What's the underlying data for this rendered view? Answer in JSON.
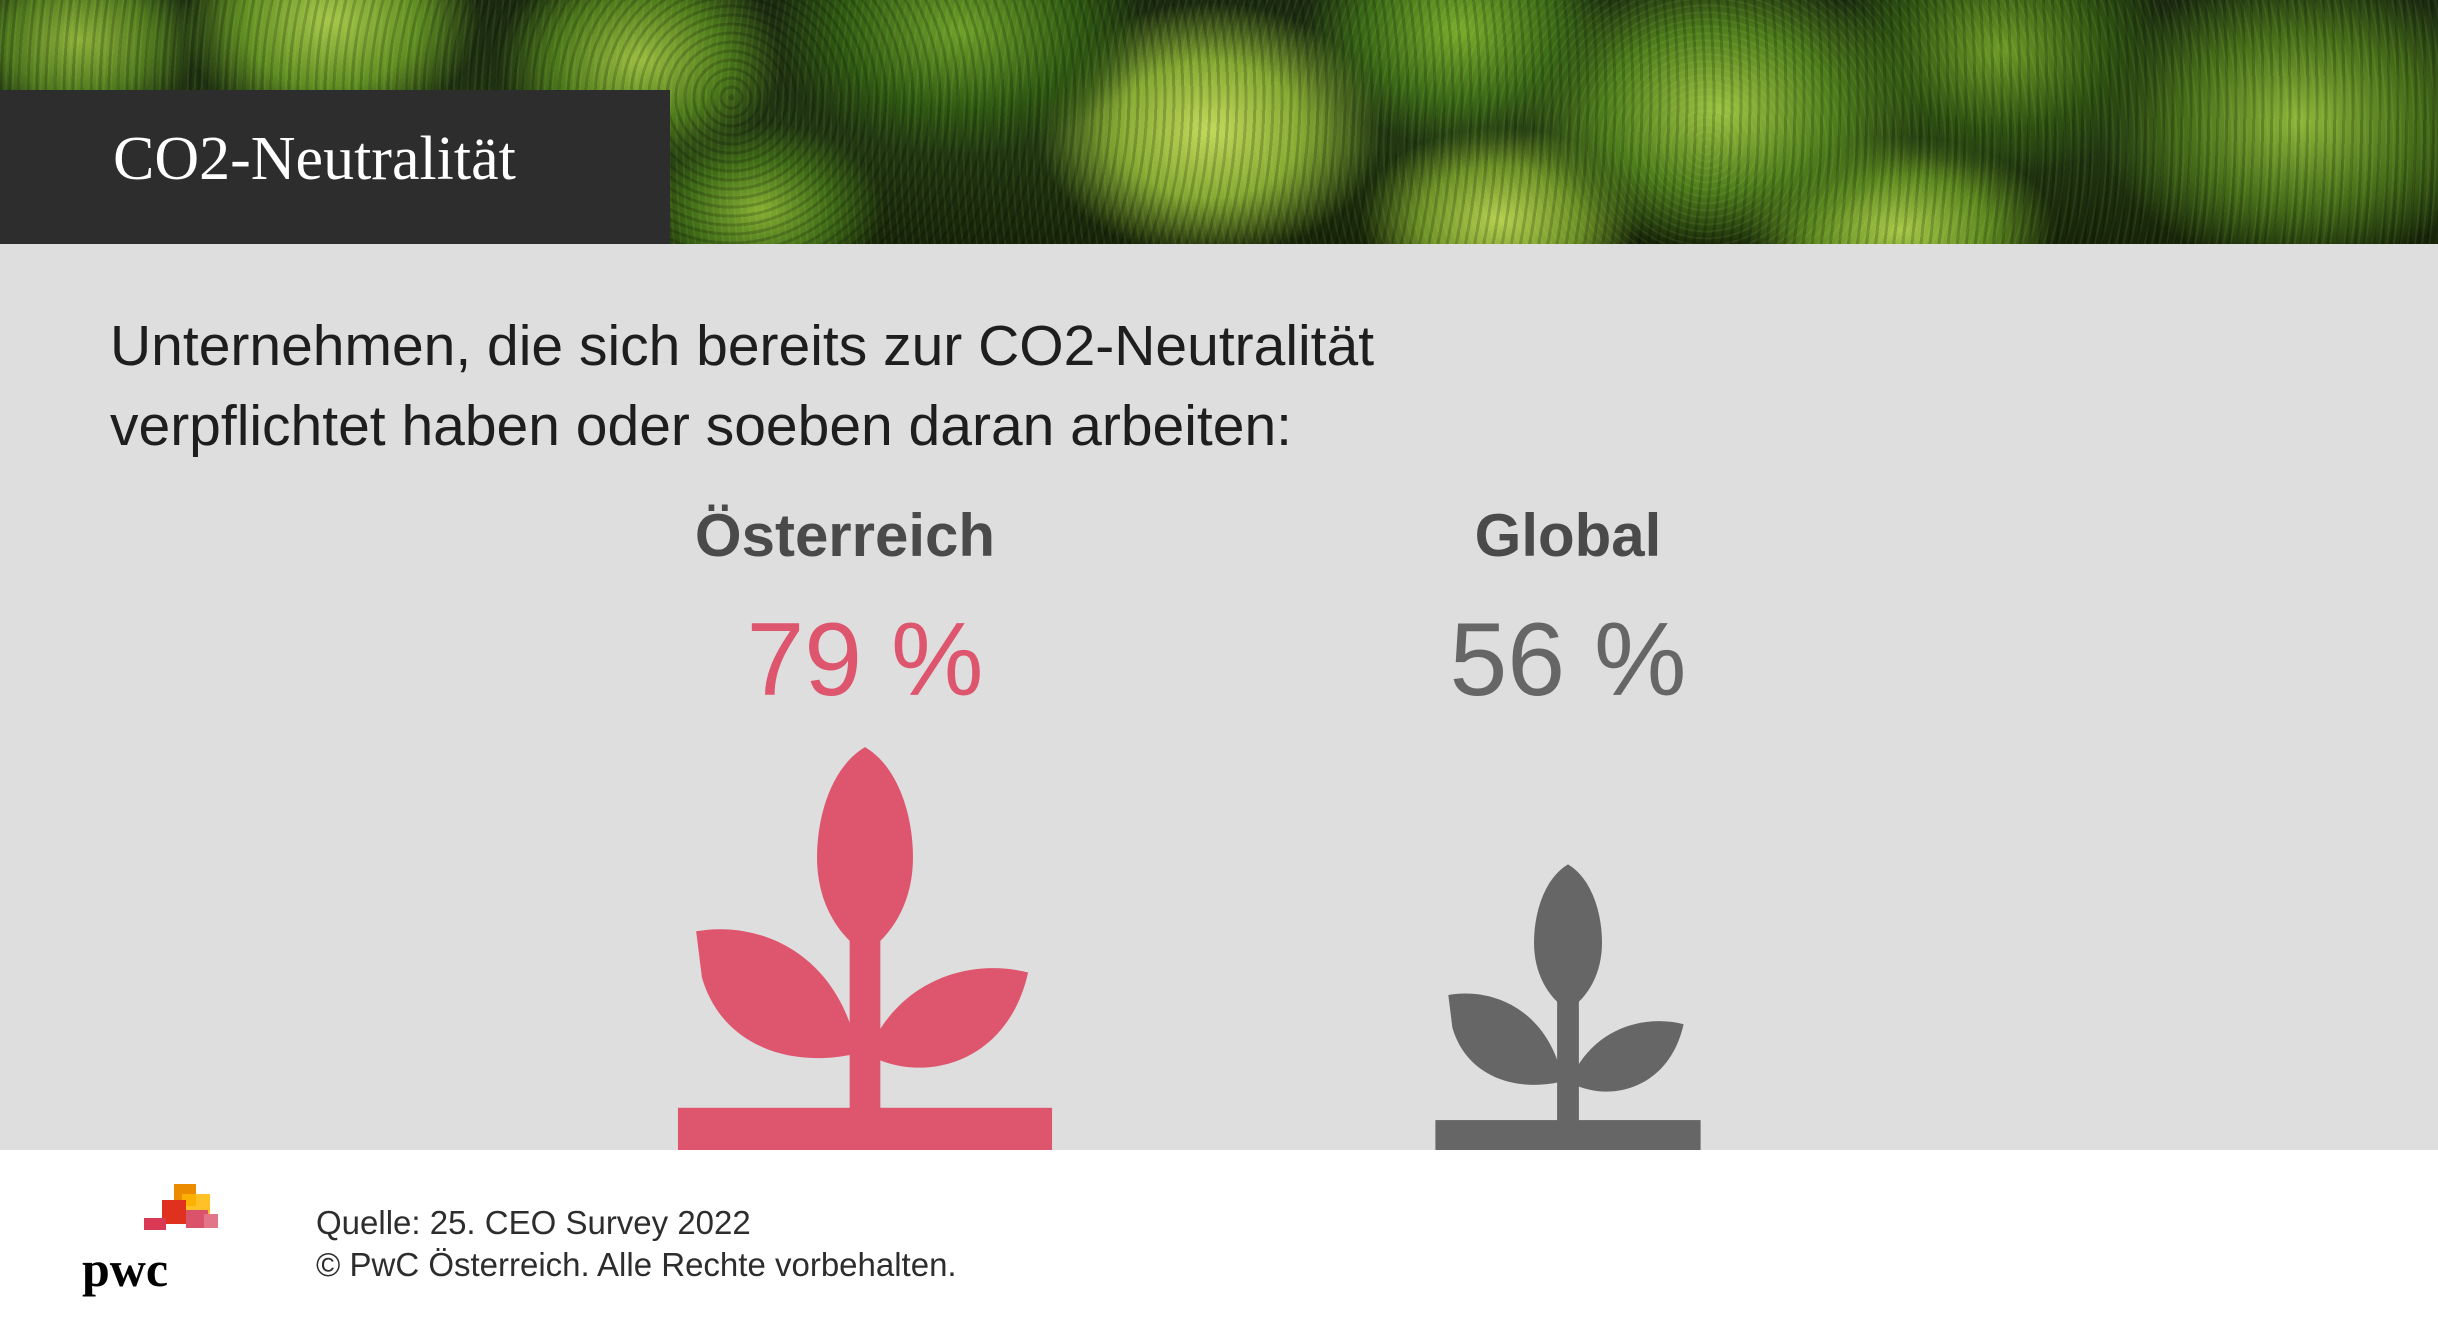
{
  "header": {
    "title": "CO2-Neutralität"
  },
  "chart_data": {
    "type": "bar",
    "title": "Unternehmen, die sich bereits zur CO2-Neutralität verpflichtet haben oder soeben daran arbeiten:",
    "title_lines": [
      "Unternehmen, die sich bereits zur CO2-Neutralität",
      "verpflichtet haben oder soeben daran arbeiten:"
    ],
    "categories": [
      "Österreich",
      "Global"
    ],
    "values": [
      79,
      56
    ],
    "value_labels": [
      "79 %",
      "56 %"
    ],
    "unit": "%",
    "colors": [
      "#de556e",
      "#666666"
    ],
    "icon": "plant-icon"
  },
  "footer": {
    "source": "Quelle: 25. CEO Survey 2022",
    "copyright": "© PwC Österreich. Alle Rechte vorbehalten.",
    "logo_text": "pwc"
  },
  "colors": {
    "title_box": "#2d2d2d",
    "panel": "#dedede",
    "logo_red": "#d93954",
    "logo_orange": "#eb8c00",
    "logo_pink": "#db536a"
  }
}
